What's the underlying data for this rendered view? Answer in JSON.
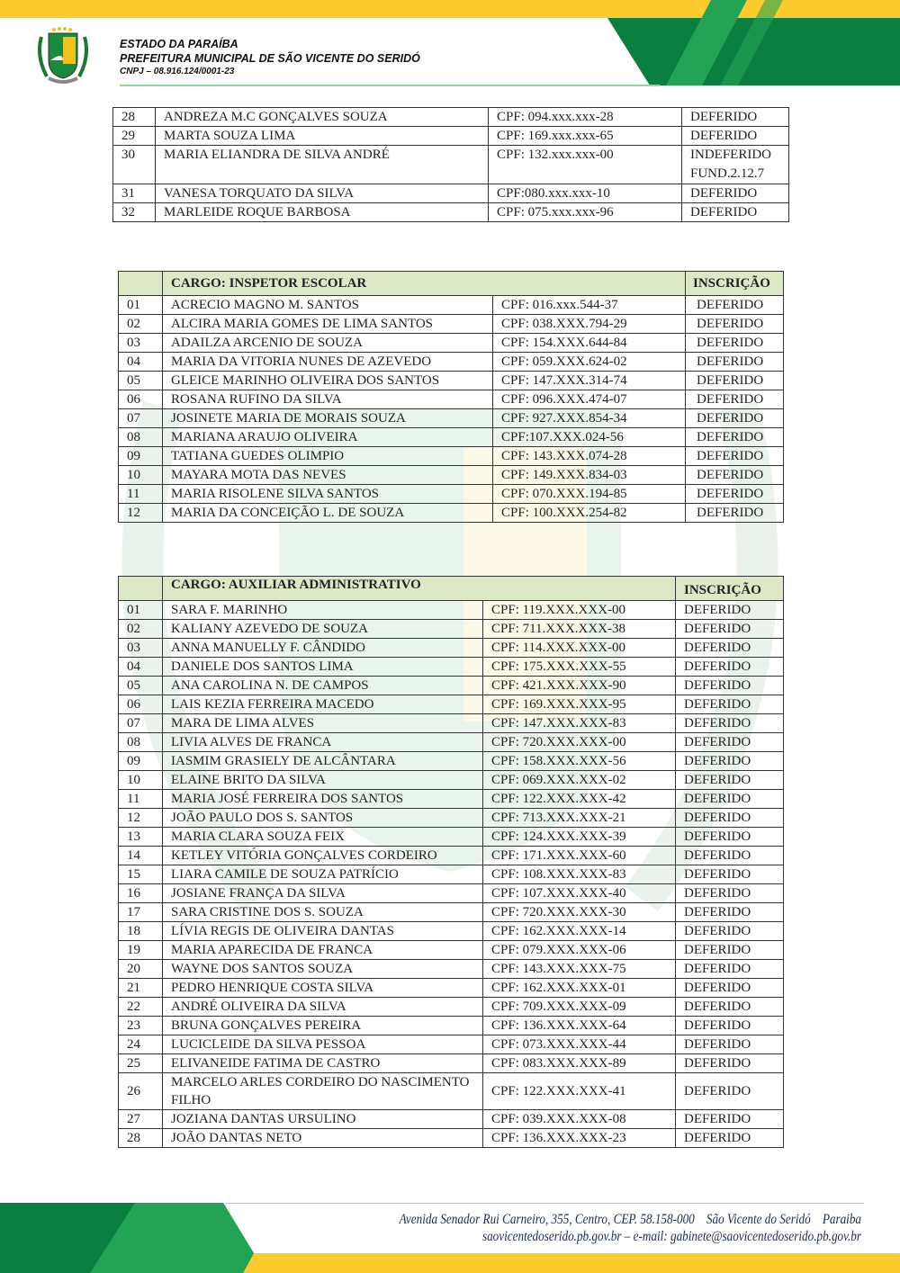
{
  "header": {
    "line1": "ESTADO DA PARAÍBA",
    "line2": "PREFEITURA MUNICIPAL DE SÃO VICENTE DO SERIDÓ",
    "cnpj": "CNPJ – 08.916.124/0001-23"
  },
  "colors": {
    "green_dark": "#0a7f3f",
    "green_light": "#23a455",
    "yellow": "#fccc2e",
    "header_cell": "#dde8c6"
  },
  "table1": {
    "rows": [
      [
        "28",
        "ANDREZA M.C GONÇALVES SOUZA",
        "CPF: 094.xxx.xxx-28",
        "DEFERIDO"
      ],
      [
        "29",
        "MARTA SOUZA LIMA",
        "CPF: 169.xxx.xxx-65",
        "DEFERIDO"
      ],
      [
        "30",
        "MARIA ELIANDRA DE SILVA ANDRÉ",
        "CPF: 132.xxx.xxx-00",
        "INDEFERIDO",
        "FUND.2.12.7"
      ],
      [
        "31",
        "VANESA TORQUATO DA SILVA",
        "CPF:080.xxx.xxx-10",
        "DEFERIDO"
      ],
      [
        "32",
        "MARLEIDE ROQUE BARBOSA",
        "CPF: 075.xxx.xxx-96",
        "DEFERIDO"
      ]
    ]
  },
  "table2": {
    "title": "CARGO: INSPETOR ESCOLAR",
    "status_header": "INSCRIÇÃO",
    "rows": [
      [
        "01",
        "ACRECIO MAGNO M. SANTOS",
        "CPF: 016.xxx.544-37",
        "DEFERIDO"
      ],
      [
        "02",
        "ALCIRA MARIA GOMES DE LIMA SANTOS",
        "CPF: 038.XXX.794-29",
        "DEFERIDO"
      ],
      [
        "03",
        "ADAILZA ARCENIO DE SOUZA",
        "CPF: 154.XXX.644-84",
        "DEFERIDO"
      ],
      [
        "04",
        "MARIA DA VITORIA NUNES DE AZEVEDO",
        "CPF: 059.XXX.624-02",
        "DEFERIDO"
      ],
      [
        "05",
        "GLEICE MARINHO OLIVEIRA DOS SANTOS",
        "CPF: 147.XXX.314-74",
        "DEFERIDO"
      ],
      [
        "06",
        "ROSANA RUFINO DA SILVA",
        "CPF: 096.XXX.474-07",
        "DEFERIDO"
      ],
      [
        "07",
        "JOSINETE MARIA DE MORAIS SOUZA",
        "CPF: 927.XXX.854-34",
        "DEFERIDO"
      ],
      [
        "08",
        "MARIANA ARAUJO OLIVEIRA",
        "CPF:107.XXX.024-56",
        "DEFERIDO"
      ],
      [
        "09",
        "TATIANA GUEDES OLIMPIO",
        "CPF: 143.XXX.074-28",
        "DEFERIDO"
      ],
      [
        "10",
        "MAYARA MOTA DAS NEVES",
        "CPF: 149.XXX.834-03",
        "DEFERIDO"
      ],
      [
        "11",
        "MARIA RISOLENE SILVA SANTOS",
        "CPF: 070.XXX.194-85",
        "DEFERIDO"
      ],
      [
        "12",
        "MARIA DA CONCEIÇÃO L. DE SOUZA",
        "CPF: 100.XXX.254-82",
        "DEFERIDO"
      ]
    ]
  },
  "table3": {
    "title": "CARGO: AUXILIAR ADMINISTRATIVO",
    "status_header": "INSCRIÇÃO",
    "rows": [
      [
        "01",
        "SARA F. MARINHO",
        "CPF: 119.XXX.XXX-00",
        "DEFERIDO"
      ],
      [
        "02",
        "KALIANY AZEVEDO DE SOUZA",
        "CPF: 711.XXX.XXX-38",
        "DEFERIDO"
      ],
      [
        "03",
        "ANNA MANUELLY F. CÂNDIDO",
        "CPF: 114.XXX.XXX-00",
        "DEFERIDO"
      ],
      [
        "04",
        "DANIELE DOS SANTOS LIMA",
        "CPF: 175.XXX.XXX-55",
        "DEFERIDO"
      ],
      [
        "05",
        "ANA CAROLINA N. DE CAMPOS",
        "CPF: 421.XXX.XXX-90",
        "DEFERIDO"
      ],
      [
        "06",
        "LAIS KEZIA FERREIRA MACEDO",
        "CPF: 169.XXX.XXX-95",
        "DEFERIDO"
      ],
      [
        "07",
        "MARA DE LIMA ALVES",
        "CPF: 147.XXX.XXX-83",
        "DEFERIDO"
      ],
      [
        "08",
        "LIVIA ALVES DE FRANCA",
        "CPF: 720.XXX.XXX-00",
        "DEFERIDO"
      ],
      [
        "09",
        "IASMIM GRASIELY DE ALCÂNTARA",
        "CPF: 158.XXX.XXX-56",
        "DEFERIDO"
      ],
      [
        "10",
        "ELAINE BRITO DA SILVA",
        "CPF: 069.XXX.XXX-02",
        "DEFERIDO"
      ],
      [
        "11",
        "MARIA JOSÉ FERREIRA DOS SANTOS",
        "CPF: 122.XXX.XXX-42",
        "DEFERIDO"
      ],
      [
        "12",
        "JOÃO PAULO DOS S. SANTOS",
        "CPF: 713.XXX.XXX-21",
        "DEFERIDO"
      ],
      [
        "13",
        "MARIA CLARA SOUZA FEIX",
        "CPF: 124.XXX.XXX-39",
        "DEFERIDO"
      ],
      [
        "14",
        "KETLEY VITÓRIA GONÇALVES CORDEIRO",
        "CPF: 171.XXX.XXX-60",
        "DEFERIDO"
      ],
      [
        "15",
        "LIARA CAMILE DE SOUZA PATRÍCIO",
        "CPF: 108.XXX.XXX-83",
        "DEFERIDO"
      ],
      [
        "16",
        "JOSIANE FRANÇA DA SILVA",
        "CPF: 107.XXX.XXX-40",
        "DEFERIDO"
      ],
      [
        "17",
        "SARA CRISTINE DOS S. SOUZA",
        "CPF: 720.XXX.XXX-30",
        "DEFERIDO"
      ],
      [
        "18",
        "LÍVIA REGIS DE OLIVEIRA DANTAS",
        "CPF: 162.XXX.XXX-14",
        "DEFERIDO"
      ],
      [
        "19",
        "MARIA APARECIDA DE FRANCA",
        "CPF: 079.XXX.XXX-06",
        "DEFERIDO"
      ],
      [
        "20",
        "WAYNE DOS SANTOS SOUZA",
        "CPF: 143.XXX.XXX-75",
        "DEFERIDO"
      ],
      [
        "21",
        "PEDRO HENRIQUE COSTA SILVA",
        "CPF: 162.XXX.XXX-01",
        "DEFERIDO"
      ],
      [
        "22",
        "ANDRÉ OLIVEIRA DA SILVA",
        "CPF: 709.XXX.XXX-09",
        "DEFERIDO"
      ],
      [
        "23",
        "BRUNA GONÇALVES PEREIRA",
        "CPF: 136.XXX.XXX-64",
        "DEFERIDO"
      ],
      [
        "24",
        "LUCICLEIDE DA SILVA PESSOA",
        "CPF: 073.XXX.XXX-44",
        "DEFERIDO"
      ],
      [
        "25",
        "ELIVANEIDE FATIMA DE CASTRO",
        "CPF: 083.XXX.XXX-89",
        "DEFERIDO"
      ],
      [
        "26",
        "MARCELO ARLES CORDEIRO DO NASCIMENTO FILHO",
        "CPF: 122.XXX.XXX-41",
        "DEFERIDO"
      ],
      [
        "27",
        "JOZIANA DANTAS URSULINO",
        "CPF: 039.XXX.XXX-08",
        "DEFERIDO"
      ],
      [
        "28",
        "JOÃO DANTAS NETO",
        "CPF: 136.XXX.XXX-23",
        "DEFERIDO"
      ]
    ]
  },
  "footer": {
    "address": "Avenida Senador Rui Carneiro, 355, Centro, CEP. 58.158-000    São Vicente do Seridó    Paraiba",
    "contact": "saovicentedoserido.pb.gov.br – e-mail: gabinete@saovicentedoserido.pb.gov.br"
  }
}
